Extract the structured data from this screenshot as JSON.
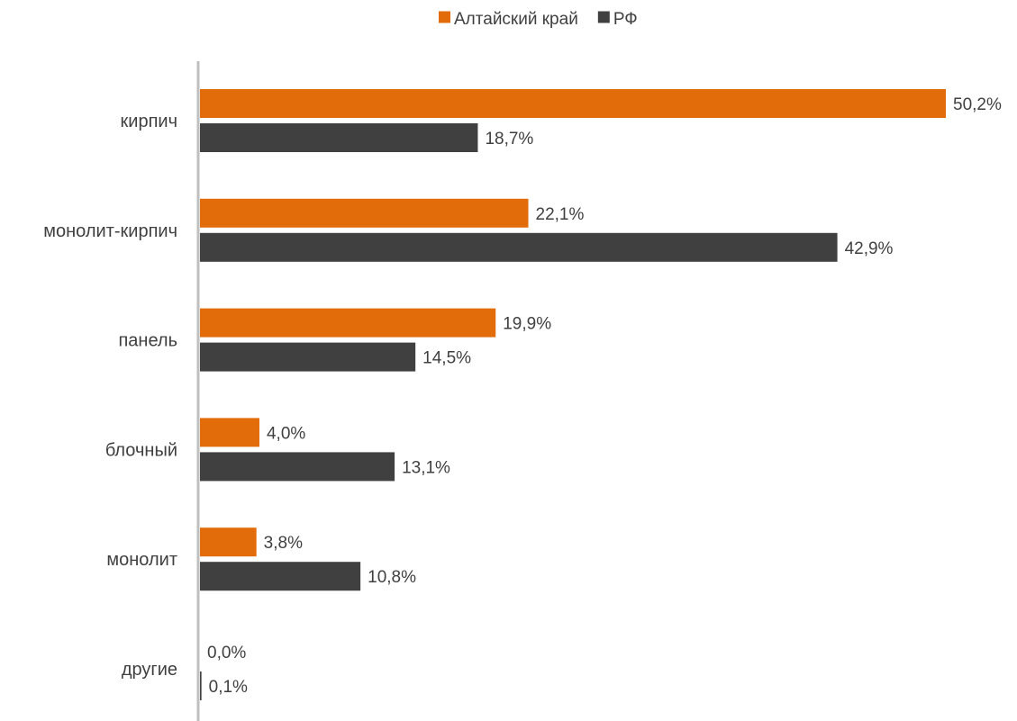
{
  "chart_data": {
    "type": "bar",
    "orientation": "horizontal",
    "categories": [
      "кирпич",
      "монолит-кирпич",
      "панель",
      "блочный",
      "монолит",
      "другие"
    ],
    "series": [
      {
        "name": "Алтайский край",
        "color": "#E36C0A",
        "values": [
          50.2,
          22.1,
          19.9,
          4.0,
          3.8,
          0.0
        ],
        "labels": [
          "50,2%",
          "22,1%",
          "19,9%",
          "4,0%",
          "3,8%",
          "0,0%"
        ]
      },
      {
        "name": "РФ",
        "color": "#404040",
        "values": [
          18.7,
          42.9,
          14.5,
          13.1,
          10.8,
          0.1
        ],
        "labels": [
          "18,7%",
          "42,9%",
          "14,5%",
          "13,1%",
          "10,8%",
          "0,1%"
        ]
      }
    ],
    "xlim": [
      0,
      50.2
    ],
    "legend_position": "top",
    "grid": false,
    "axis_color": "#BFBFBF"
  }
}
